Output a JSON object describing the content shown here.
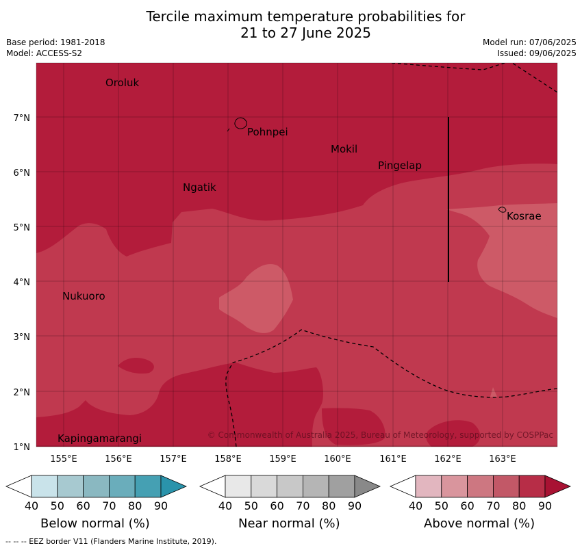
{
  "title": {
    "line1": "Tercile maximum temperature probabilities for",
    "line2": "21 to 27 June 2025"
  },
  "meta_left": {
    "base_period": "Base period: 1981-2018",
    "model": "Model: ACCESS-S2"
  },
  "meta_right": {
    "model_run": "Model run: 07/06/2025",
    "issued": "Issued: 09/06/2025"
  },
  "map": {
    "lat_ticks": [
      "1°N",
      "2°N",
      "3°N",
      "4°N",
      "5°N",
      "6°N",
      "7°N"
    ],
    "lon_ticks": [
      "155°E",
      "156°E",
      "157°E",
      "158°E",
      "159°E",
      "160°E",
      "161°E",
      "162°E",
      "163°E"
    ],
    "places": [
      {
        "name": "Oroluk"
      },
      {
        "name": "Pohnpei"
      },
      {
        "name": "Mokil"
      },
      {
        "name": "Pingelap"
      },
      {
        "name": "Ngatik"
      },
      {
        "name": "Kosrae"
      },
      {
        "name": "Nukuoro"
      },
      {
        "name": "Kapingamarangi"
      }
    ],
    "copyright": "© Commonwealth of Australia 2025, Bureau of Meteorology, supported by COSPPac",
    "fill_colors": {
      "above_80": "#b31c3b",
      "above_70": "#c0394f",
      "above_60": "#cd5a67",
      "above_50": "#d98c95"
    }
  },
  "legends": [
    {
      "label": "Below normal (%)",
      "ticks": [
        "40",
        "50",
        "60",
        "70",
        "80",
        "90"
      ],
      "colors": [
        "#ffffff",
        "#c9e3ea",
        "#a7c9d0",
        "#8ab8c1",
        "#6aadbb",
        "#45a0b3",
        "#2a93ab"
      ]
    },
    {
      "label": "Near normal (%)",
      "ticks": [
        "40",
        "50",
        "60",
        "70",
        "80",
        "90"
      ],
      "colors": [
        "#ffffff",
        "#e8e8e8",
        "#d9d9d9",
        "#c8c8c8",
        "#b5b5b5",
        "#a0a0a0",
        "#898989"
      ]
    },
    {
      "label": "Above normal (%)",
      "ticks": [
        "40",
        "50",
        "60",
        "70",
        "80",
        "90"
      ],
      "colors": [
        "#ffffff",
        "#e2b6bf",
        "#d9959d",
        "#cd7781",
        "#c25867",
        "#b72d47",
        "#a81233"
      ]
    }
  ],
  "footer": "-- -- -- EEZ border V11 (Flanders Marine Institute, 2019)."
}
